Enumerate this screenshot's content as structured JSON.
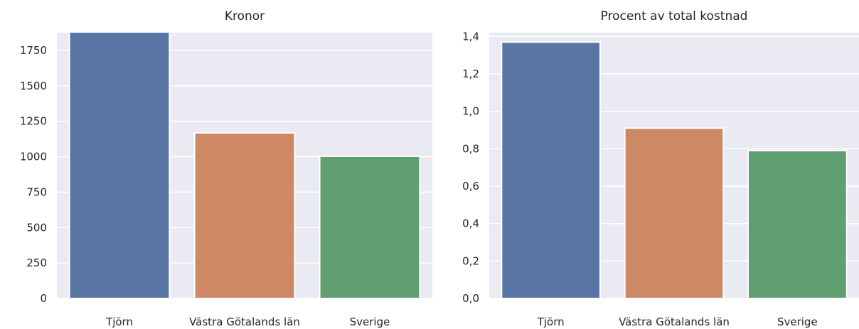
{
  "chart_data": [
    {
      "type": "bar",
      "title": "Kronor",
      "categories": [
        "Tjörn",
        "Västra Götalands län",
        "Sverige"
      ],
      "values": [
        1880,
        1168,
        1003
      ],
      "colors": [
        "#5875a4",
        "#cc8963",
        "#5f9e6e"
      ],
      "ylim": [
        0,
        1875
      ],
      "yticks": [
        0,
        250,
        500,
        750,
        1000,
        1250,
        1500,
        1750
      ],
      "ytick_labels": [
        "0",
        "250",
        "500",
        "750",
        "1000",
        "1250",
        "1500",
        "1750"
      ],
      "grid": true
    },
    {
      "type": "bar",
      "title": "Procent av total kostnad",
      "categories": [
        "Tjörn",
        "Västra Götalands län",
        "Sverige"
      ],
      "values": [
        1.37,
        0.91,
        0.79
      ],
      "colors": [
        "#5875a4",
        "#cc8963",
        "#5f9e6e"
      ],
      "ylim": [
        0,
        1.42
      ],
      "yticks": [
        0,
        0.2,
        0.4,
        0.6,
        0.8,
        1.0,
        1.2,
        1.4
      ],
      "ytick_labels": [
        "0,0",
        "0,2",
        "0,4",
        "0,6",
        "0,8",
        "1,0",
        "1,2",
        "1,4"
      ],
      "grid": true
    }
  ]
}
